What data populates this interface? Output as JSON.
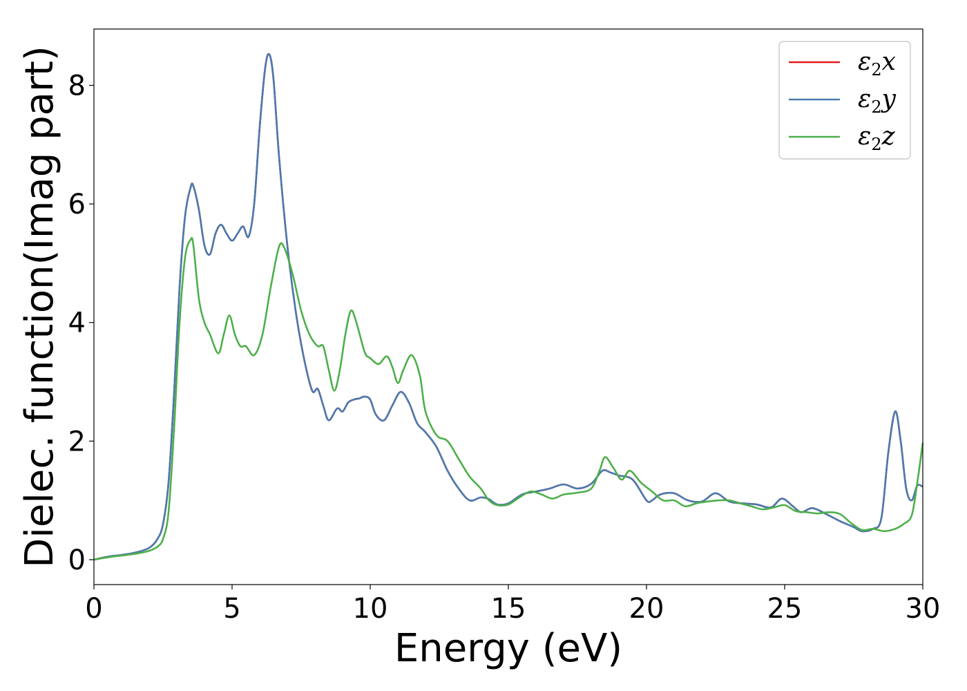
{
  "chart_data": {
    "type": "line",
    "title": "",
    "xlabel": "Energy (eV)",
    "ylabel": "Dielec. function(Imag part)",
    "xlim": [
      0,
      30
    ],
    "ylim": [
      -0.42,
      8.95
    ],
    "xticks": [
      0,
      5,
      10,
      15,
      20,
      25,
      30
    ],
    "yticks": [
      0,
      2,
      4,
      6,
      8
    ],
    "grid": false,
    "legend_position": "top-right",
    "series": [
      {
        "name": "ε2x",
        "legend_symbol": "ε",
        "legend_sub": "2",
        "legend_var": "x",
        "color": "#e41a1c",
        "x": [
          0,
          0.5,
          1,
          1.5,
          2,
          2.3,
          2.5,
          2.7,
          2.9,
          3.1,
          3.3,
          3.5,
          3.6,
          3.8,
          4.0,
          4.2,
          4.4,
          4.6,
          4.8,
          5.0,
          5.2,
          5.4,
          5.6,
          5.8,
          6.0,
          6.2,
          6.35,
          6.5,
          6.7,
          7.0,
          7.3,
          7.6,
          7.9,
          8.1,
          8.3,
          8.5,
          8.8,
          9.0,
          9.2,
          9.4,
          9.6,
          9.8,
          10.0,
          10.2,
          10.5,
          10.8,
          11.1,
          11.4,
          11.7,
          12.0,
          12.4,
          12.8,
          13.2,
          13.6,
          14.0,
          14.3,
          14.6,
          15.0,
          15.5,
          16.0,
          16.5,
          17.0,
          17.5,
          18.0,
          18.4,
          18.7,
          19.0,
          19.5,
          20.0,
          20.2,
          20.5,
          21.0,
          21.5,
          22.0,
          22.5,
          23.0,
          23.5,
          24.0,
          24.5,
          24.9,
          25.3,
          25.6,
          26.0,
          26.5,
          27.0,
          27.5,
          27.8,
          28.2,
          28.5,
          28.75,
          29.0,
          29.2,
          29.4,
          29.6,
          29.8,
          30.0
        ],
        "y": [
          0,
          0.05,
          0.08,
          0.12,
          0.2,
          0.35,
          0.6,
          1.3,
          2.8,
          4.6,
          5.8,
          6.28,
          6.3,
          5.9,
          5.3,
          5.15,
          5.5,
          5.65,
          5.5,
          5.38,
          5.5,
          5.62,
          5.45,
          6.0,
          7.3,
          8.3,
          8.52,
          8.1,
          6.8,
          5.3,
          4.2,
          3.4,
          2.85,
          2.88,
          2.6,
          2.35,
          2.55,
          2.5,
          2.65,
          2.7,
          2.72,
          2.75,
          2.7,
          2.45,
          2.35,
          2.6,
          2.83,
          2.65,
          2.3,
          2.15,
          1.9,
          1.5,
          1.2,
          1.0,
          1.05,
          1.02,
          0.93,
          0.95,
          1.1,
          1.15,
          1.2,
          1.27,
          1.2,
          1.28,
          1.5,
          1.47,
          1.42,
          1.35,
          1.0,
          1.0,
          1.1,
          1.12,
          1.0,
          0.98,
          1.12,
          0.98,
          0.95,
          0.93,
          0.88,
          1.03,
          0.9,
          0.8,
          0.87,
          0.77,
          0.65,
          0.55,
          0.48,
          0.52,
          0.7,
          1.8,
          2.5,
          2.0,
          1.2,
          1.0,
          1.25,
          1.23
        ]
      },
      {
        "name": "ε2y",
        "legend_symbol": "ε",
        "legend_sub": "2",
        "legend_var": "y",
        "color": "#4a7bb0",
        "x": [
          0,
          0.5,
          1,
          1.5,
          2,
          2.3,
          2.5,
          2.7,
          2.9,
          3.1,
          3.3,
          3.5,
          3.6,
          3.8,
          4.0,
          4.2,
          4.4,
          4.6,
          4.8,
          5.0,
          5.2,
          5.4,
          5.6,
          5.8,
          6.0,
          6.2,
          6.35,
          6.5,
          6.7,
          7.0,
          7.3,
          7.6,
          7.9,
          8.1,
          8.3,
          8.5,
          8.8,
          9.0,
          9.2,
          9.4,
          9.6,
          9.8,
          10.0,
          10.2,
          10.5,
          10.8,
          11.1,
          11.4,
          11.7,
          12.0,
          12.4,
          12.8,
          13.2,
          13.6,
          14.0,
          14.3,
          14.6,
          15.0,
          15.5,
          16.0,
          16.5,
          17.0,
          17.5,
          18.0,
          18.4,
          18.7,
          19.0,
          19.5,
          20.0,
          20.2,
          20.5,
          21.0,
          21.5,
          22.0,
          22.5,
          23.0,
          23.5,
          24.0,
          24.5,
          24.9,
          25.3,
          25.6,
          26.0,
          26.5,
          27.0,
          27.5,
          27.8,
          28.2,
          28.5,
          28.75,
          29.0,
          29.2,
          29.4,
          29.6,
          29.8,
          30.0
        ],
        "y": [
          0,
          0.05,
          0.08,
          0.12,
          0.2,
          0.35,
          0.6,
          1.3,
          2.8,
          4.6,
          5.8,
          6.28,
          6.3,
          5.9,
          5.3,
          5.15,
          5.5,
          5.65,
          5.5,
          5.38,
          5.5,
          5.62,
          5.45,
          6.0,
          7.3,
          8.3,
          8.52,
          8.1,
          6.8,
          5.3,
          4.2,
          3.4,
          2.85,
          2.88,
          2.6,
          2.35,
          2.55,
          2.5,
          2.65,
          2.7,
          2.72,
          2.75,
          2.7,
          2.45,
          2.35,
          2.6,
          2.83,
          2.65,
          2.3,
          2.15,
          1.9,
          1.5,
          1.2,
          1.0,
          1.05,
          1.02,
          0.93,
          0.95,
          1.1,
          1.15,
          1.2,
          1.27,
          1.2,
          1.28,
          1.5,
          1.47,
          1.42,
          1.35,
          1.0,
          1.0,
          1.1,
          1.12,
          1.0,
          0.98,
          1.12,
          0.98,
          0.95,
          0.93,
          0.88,
          1.03,
          0.9,
          0.8,
          0.87,
          0.77,
          0.65,
          0.55,
          0.48,
          0.52,
          0.7,
          1.8,
          2.5,
          2.0,
          1.2,
          1.0,
          1.25,
          1.23
        ]
      },
      {
        "name": "ε2z",
        "legend_symbol": "ε",
        "legend_sub": "2",
        "legend_var": "z",
        "color": "#4daf4a",
        "x": [
          0,
          0.5,
          1,
          1.5,
          2,
          2.3,
          2.5,
          2.7,
          2.9,
          3.1,
          3.3,
          3.5,
          3.6,
          3.8,
          4.0,
          4.2,
          4.5,
          4.7,
          4.9,
          5.1,
          5.3,
          5.5,
          5.8,
          6.1,
          6.4,
          6.7,
          6.9,
          7.2,
          7.5,
          7.8,
          8.1,
          8.3,
          8.5,
          8.7,
          8.9,
          9.1,
          9.3,
          9.5,
          9.8,
          10.0,
          10.3,
          10.6,
          10.8,
          11.0,
          11.2,
          11.5,
          11.8,
          12.0,
          12.4,
          12.8,
          13.2,
          13.6,
          14.0,
          14.3,
          14.6,
          15.0,
          15.4,
          15.8,
          16.2,
          16.6,
          17.0,
          17.5,
          18.0,
          18.3,
          18.5,
          18.8,
          19.1,
          19.4,
          19.8,
          20.2,
          20.6,
          21.0,
          21.4,
          21.8,
          22.2,
          22.6,
          23.0,
          23.4,
          23.8,
          24.2,
          24.6,
          25.0,
          25.4,
          25.8,
          26.2,
          26.6,
          27.0,
          27.4,
          27.8,
          28.2,
          28.6,
          29.0,
          29.3,
          29.6,
          29.8,
          30.0
        ],
        "y": [
          0,
          0.04,
          0.07,
          0.1,
          0.15,
          0.22,
          0.35,
          0.8,
          2.2,
          4.0,
          5.1,
          5.4,
          5.3,
          4.4,
          4.0,
          3.8,
          3.48,
          3.8,
          4.12,
          3.8,
          3.6,
          3.6,
          3.45,
          3.8,
          4.6,
          5.28,
          5.25,
          4.8,
          4.2,
          3.8,
          3.6,
          3.6,
          3.2,
          2.85,
          3.2,
          3.8,
          4.2,
          4.0,
          3.5,
          3.4,
          3.3,
          3.43,
          3.25,
          2.98,
          3.2,
          3.45,
          3.1,
          2.5,
          2.1,
          2.0,
          1.7,
          1.4,
          1.2,
          1.0,
          0.92,
          0.93,
          1.05,
          1.15,
          1.1,
          1.03,
          1.1,
          1.13,
          1.2,
          1.5,
          1.73,
          1.55,
          1.35,
          1.5,
          1.3,
          1.15,
          1.0,
          1.0,
          0.9,
          0.95,
          0.98,
          1.0,
          1.0,
          0.95,
          0.9,
          0.85,
          0.88,
          0.92,
          0.82,
          0.8,
          0.78,
          0.8,
          0.77,
          0.62,
          0.5,
          0.52,
          0.48,
          0.52,
          0.6,
          0.75,
          1.3,
          1.97
        ]
      }
    ]
  }
}
